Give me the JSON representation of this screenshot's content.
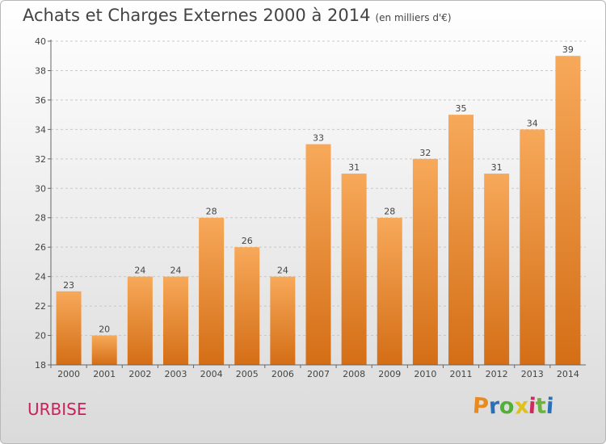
{
  "title": "Achats et Charges Externes 2000 à 2014",
  "subtitle": "(en milliers d'€)",
  "place": "URBISE",
  "logo": {
    "text": "Proxiti",
    "colors": [
      "#e98a1f",
      "#2b6fb6",
      "#52b039",
      "#e0c11b",
      "#cc2b5e",
      "#6ab33c",
      "#2b6fb6"
    ]
  },
  "colors": {
    "bar_top": "#f7a95a",
    "bar_bottom": "#d46e16",
    "grid": "#c8c8c8",
    "place": "#cc1f5c"
  },
  "chart_data": {
    "type": "bar",
    "categories": [
      "2000",
      "2001",
      "2002",
      "2003",
      "2004",
      "2005",
      "2006",
      "2007",
      "2008",
      "2009",
      "2010",
      "2011",
      "2012",
      "2013",
      "2014"
    ],
    "values": [
      23,
      20,
      24,
      24,
      28,
      26,
      24,
      33,
      31,
      28,
      32,
      35,
      31,
      34,
      39
    ],
    "ylim": [
      18,
      40
    ],
    "yticks": [
      18,
      20,
      22,
      24,
      26,
      28,
      30,
      32,
      34,
      36,
      38,
      40
    ],
    "grid": true,
    "xlabel": "",
    "ylabel": ""
  }
}
